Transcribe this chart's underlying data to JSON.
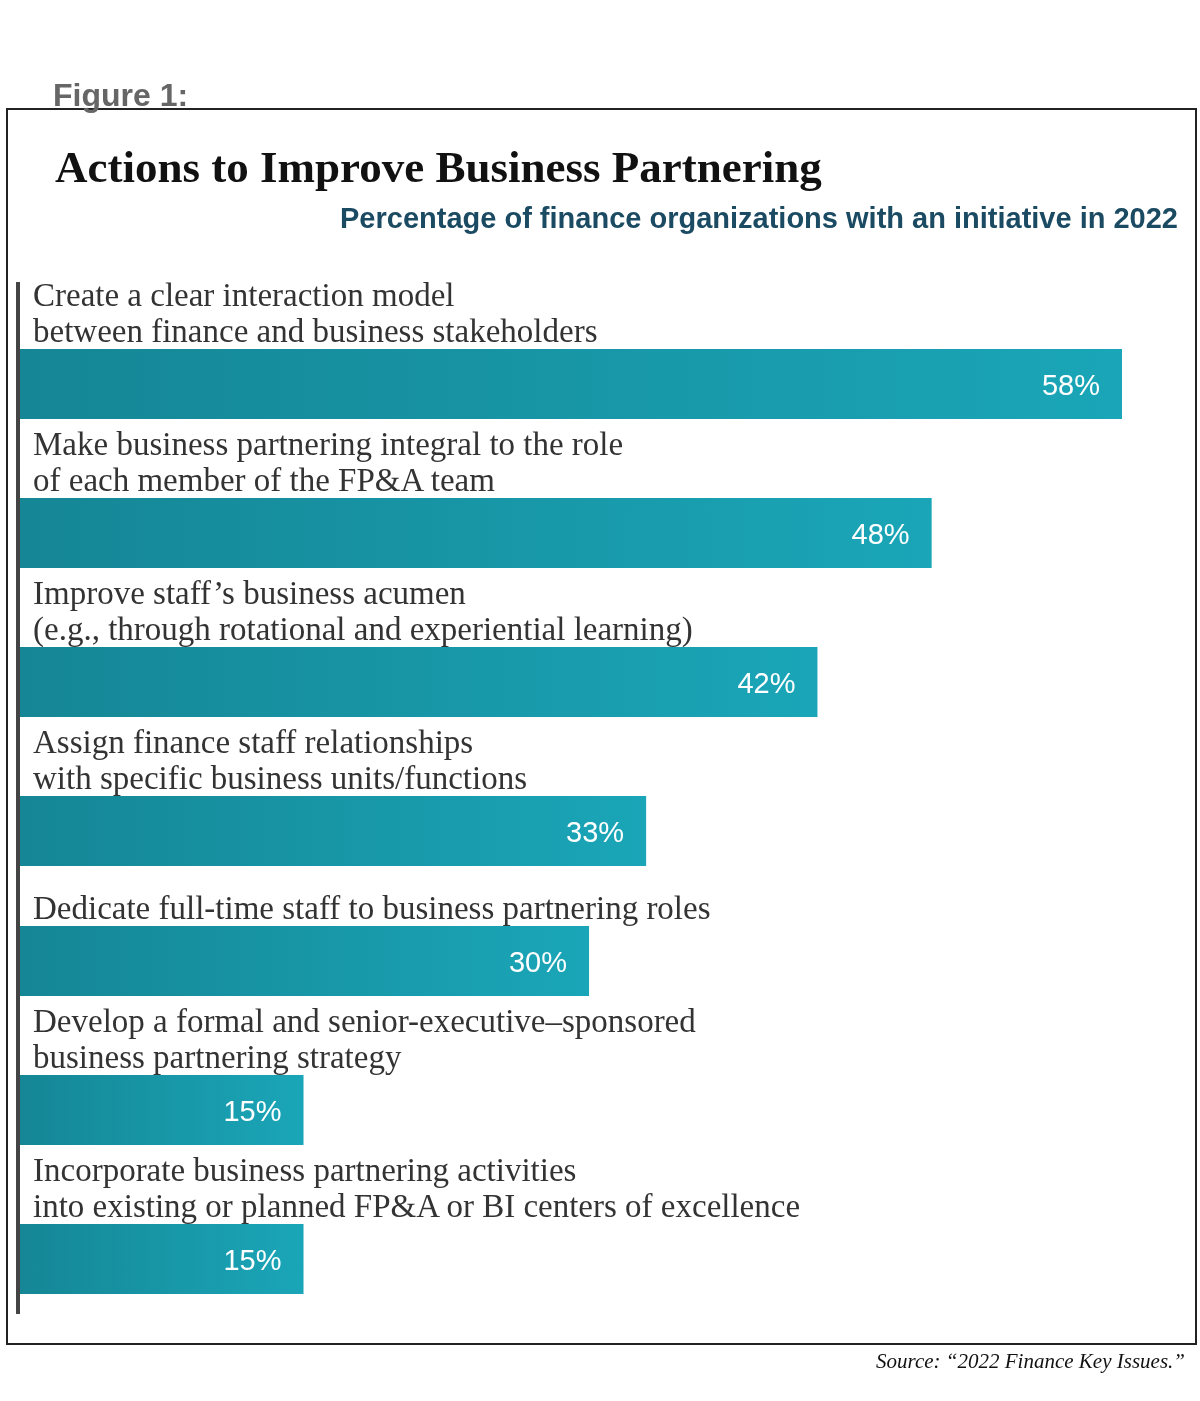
{
  "chart_data": {
    "type": "bar",
    "orientation": "horizontal",
    "title": "Actions to Improve Business Partnering",
    "subtitle": "Percentage of finance organizations with an initiative in 2022",
    "categories": [
      "Create a clear interaction model\nbetween finance and business stakeholders",
      "Make business partnering integral to the role\nof each member of the FP&A team",
      "Improve staff’s business acumen\n(e.g., through rotational and experiential learning)",
      "Assign finance staff relationships\nwith specific business units/functions",
      "Dedicate full-time staff to business partnering roles",
      "Develop a formal and senior-executive–sponsored\nbusiness partnering strategy",
      "Incorporate business partnering activities\ninto existing or planned FP&A or BI centers of excellence"
    ],
    "values": [
      58,
      48,
      42,
      33,
      30,
      15,
      15
    ],
    "value_labels": [
      "58%",
      "48%",
      "42%",
      "33%",
      "30%",
      "15%",
      "15%"
    ],
    "color": "#1aa6b8",
    "annotations": [
      "Figure 1:",
      "Source: “2022 Finance Key Issues.”"
    ]
  }
}
